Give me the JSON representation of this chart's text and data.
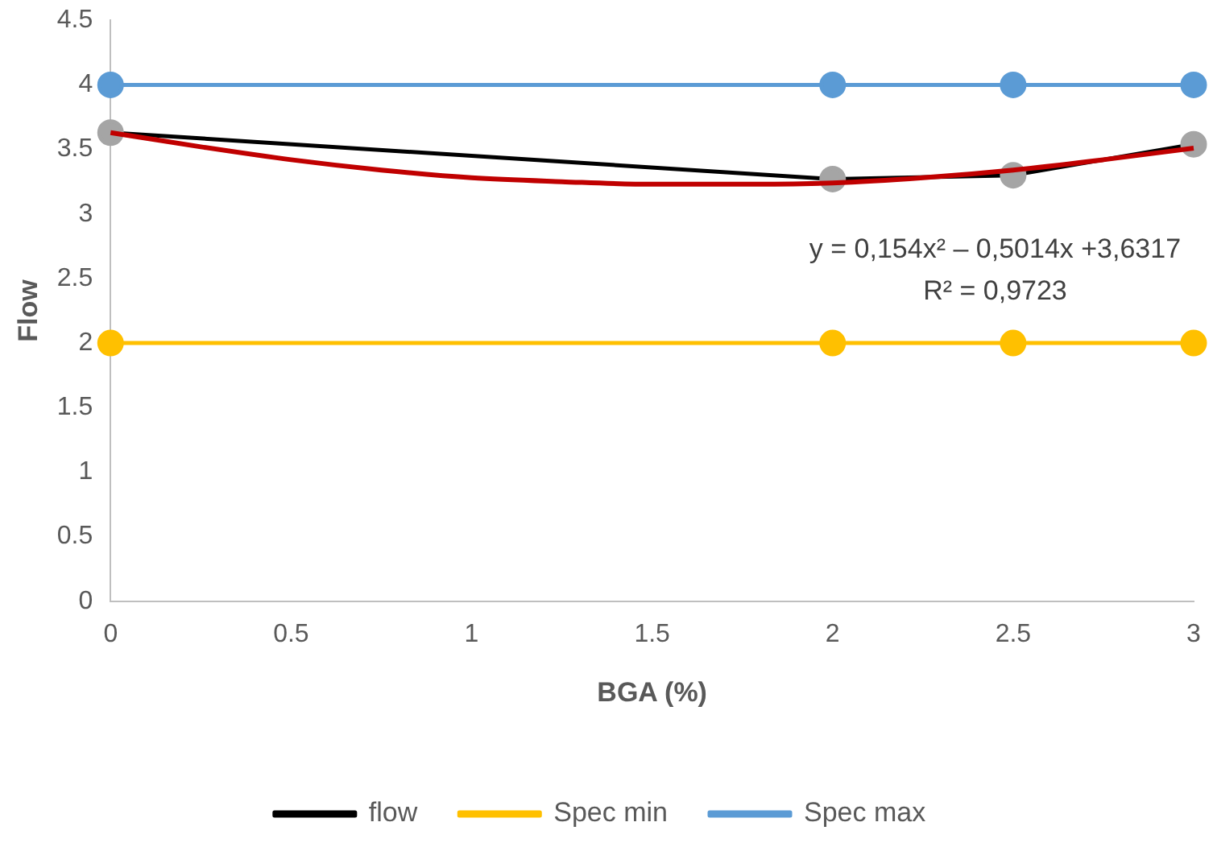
{
  "chart_data": {
    "type": "line",
    "xlabel": "BGA (%)",
    "ylabel": "Flow",
    "x": [
      0,
      2,
      2.5,
      3
    ],
    "xlim": [
      0,
      3
    ],
    "xticks": [
      0,
      0.5,
      1,
      1.5,
      2,
      2.5,
      3
    ],
    "ylim": [
      0,
      4.5
    ],
    "yticks": [
      0,
      0.5,
      1,
      1.5,
      2,
      2.5,
      3,
      3.5,
      4,
      4.5
    ],
    "grid": false,
    "legend": "bottom",
    "marker": "circle",
    "line_style": "solid",
    "series": [
      {
        "name": "flow",
        "color": "#000000",
        "colors": [
          "#a5a5a5",
          "#a5a5a5",
          "#a5a5a5",
          "#a5a5a5"
        ],
        "values": [
          3.63,
          3.27,
          3.3,
          3.54
        ]
      },
      {
        "name": "Spec min",
        "color": "#ffc000",
        "values": [
          2,
          2,
          2,
          2
        ]
      },
      {
        "name": "Spec max",
        "color": "#5b9bd5",
        "values": [
          4,
          4,
          4,
          4
        ]
      },
      {
        "type": "line",
        "color": "#c00000",
        "marker": "none",
        "x": [
          0,
          0.25,
          0.5,
          0.75,
          1,
          1.25,
          1.5,
          1.75,
          2,
          2.25,
          2.5,
          2.75,
          3
        ],
        "values": [
          3.63,
          3.52,
          3.42,
          3.34,
          3.28,
          3.25,
          3.23,
          3.23,
          3.24,
          3.28,
          3.34,
          3.42,
          3.51
        ]
      }
    ],
    "annotations": [
      "y = 0,154x² – 0,5014x +3,6317",
      "R² = 0,9723"
    ]
  }
}
